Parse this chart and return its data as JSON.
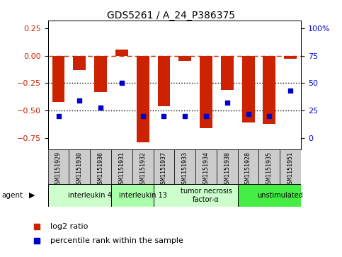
{
  "title": "GDS5261 / A_24_P386375",
  "samples": [
    "GSM1151929",
    "GSM1151930",
    "GSM1151936",
    "GSM1151931",
    "GSM1151932",
    "GSM1151937",
    "GSM1151933",
    "GSM1151934",
    "GSM1151938",
    "GSM1151928",
    "GSM1151935",
    "GSM1151951"
  ],
  "log2_ratio": [
    -0.42,
    -0.13,
    -0.33,
    0.055,
    -0.79,
    -0.46,
    -0.045,
    -0.66,
    -0.31,
    -0.61,
    -0.62,
    -0.025
  ],
  "percentile_rank": [
    20,
    34,
    28,
    50,
    20,
    20,
    20,
    20,
    32,
    22,
    20,
    43
  ],
  "agents": [
    {
      "label": "interleukin 4",
      "start": 0,
      "end": 3,
      "color": "#ccffcc"
    },
    {
      "label": "interleukin 13",
      "start": 3,
      "end": 5,
      "color": "#aaffaa"
    },
    {
      "label": "tumor necrosis\nfactor-α",
      "start": 5,
      "end": 9,
      "color": "#ccffcc"
    },
    {
      "label": "unstimulated",
      "start": 9,
      "end": 12,
      "color": "#44ee44"
    }
  ],
  "bar_color": "#cc2200",
  "dot_color": "#0000cc",
  "ylim": [
    -0.85,
    0.32
  ],
  "yticks_left": [
    0.25,
    0.0,
    -0.25,
    -0.5,
    -0.75
  ],
  "yticks_right_vals": [
    0.25,
    0.0,
    -0.25,
    -0.5,
    -0.75
  ],
  "yticks_right_labels": [
    "100%",
    "75",
    "50",
    "25",
    "0"
  ],
  "hline_dashed": 0.0,
  "hlines_dotted": [
    -0.25,
    -0.5
  ],
  "plot_bg_color": "#ffffff",
  "sample_box_color": "#cccccc",
  "figsize": [
    4.83,
    3.63
  ],
  "dpi": 100
}
